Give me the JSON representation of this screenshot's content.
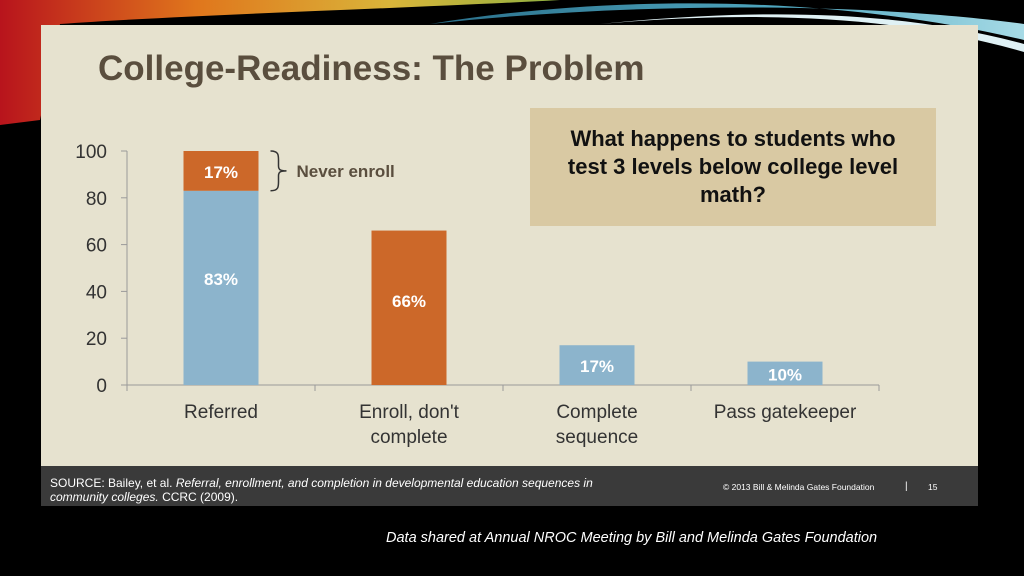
{
  "slide": {
    "title": "College-Readiness:  The Problem",
    "callout": "What happens to students who test 3 levels below college level math?",
    "annotation": "Never enroll"
  },
  "footer": {
    "source_prefix": "SOURCE: Bailey, et al.",
    "source_title": "Referral, enrollment, and completion in developmental education sequences in community colleges.",
    "source_suffix": "CCRC (2009).",
    "copyright": "© 2013 Bill & Melinda Gates Foundation",
    "separator": "|",
    "page_number": "15"
  },
  "caption": "Data shared at Annual  NROC Meeting by Bill and Melinda Gates Foundation",
  "colors": {
    "blue": "#8cb4cc",
    "orange": "#cc6829",
    "panel": "#e6e2cf",
    "title": "#5a4e3e",
    "callout_bg": "#d9c9a3"
  },
  "chart_data": {
    "type": "bar",
    "stacked": true,
    "categories": [
      "Referred",
      "Enroll, don't complete",
      "Complete sequence",
      "Pass gatekeeper"
    ],
    "category_label_lines": [
      [
        "Referred"
      ],
      [
        "Enroll, don't",
        "complete"
      ],
      [
        "Complete",
        "sequence"
      ],
      [
        "Pass gatekeeper"
      ]
    ],
    "ylim": [
      0,
      100
    ],
    "yticks": [
      0,
      20,
      40,
      60,
      80,
      100
    ],
    "xlabel": "",
    "ylabel": "",
    "grid": false,
    "bars": [
      {
        "segments": [
          {
            "value": 83,
            "label": "83%",
            "color": "#8cb4cc"
          },
          {
            "value": 17,
            "label": "17%",
            "color": "#cc6829"
          }
        ]
      },
      {
        "segments": [
          {
            "value": 66,
            "label": "66%",
            "color": "#cc6829"
          }
        ]
      },
      {
        "segments": [
          {
            "value": 17,
            "label": "17%",
            "color": "#8cb4cc"
          }
        ]
      },
      {
        "segments": [
          {
            "value": 10,
            "label": "10%",
            "color": "#8cb4cc"
          }
        ]
      }
    ]
  }
}
